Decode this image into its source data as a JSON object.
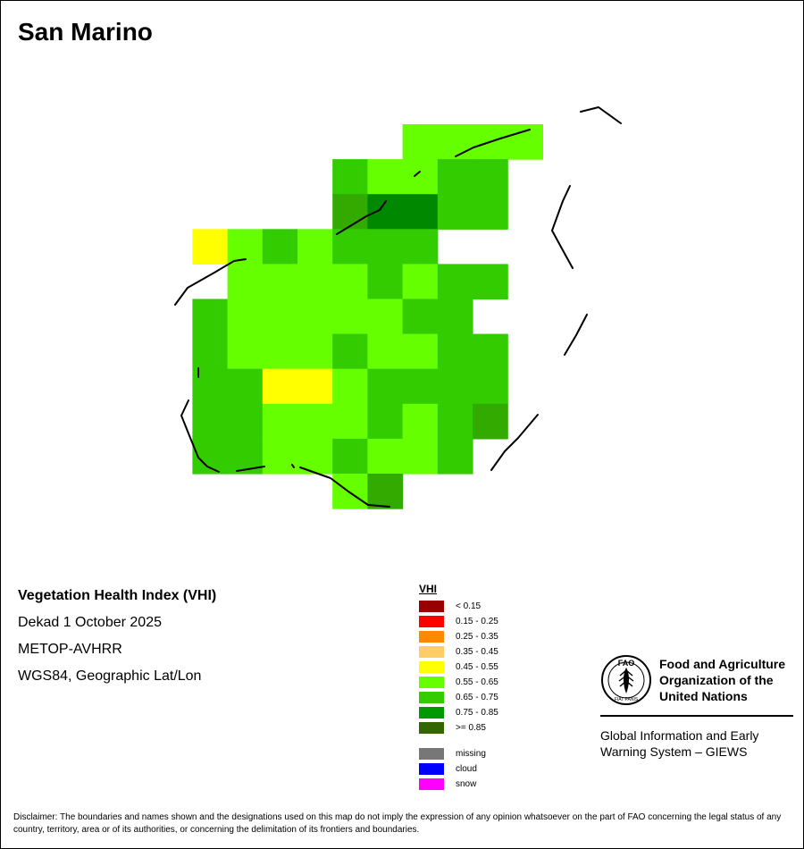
{
  "title": "San Marino",
  "map": {
    "grid": [
      "........GGGG.....",
      "......KLLKK......",
      "......ZMMAK......",
      "..YEKEKKK........",
      "...EEEEAEAA......",
      "..AEEEEEAA.......",
      "..AEEEAEEAA......",
      "..AAYYEAAAA......",
      "..AAEEEAEAZ......",
      "..AAEEAEEA.......",
      "......EZ........."
    ],
    "cell_colors": {
      "G": "#66ff00",
      "L": "#66ff00",
      "K": "#33cc00",
      "Z": "#33aa00",
      "M": "#008800",
      "A": "#33cc00",
      "E": "#66ff00",
      "Y": "#ffff00"
    },
    "boundary_color": "#000000"
  },
  "info": {
    "line1": "Vegetation Health Index (VHI)",
    "line2": "Dekad 1 October 2025",
    "line3": "METOP-AVHRR",
    "line4": "WGS84, Geographic Lat/Lon"
  },
  "legend": {
    "title": "VHI",
    "classes": [
      {
        "label": "< 0.15",
        "color": "#990000"
      },
      {
        "label": "0.15 - 0.25",
        "color": "#ff0000"
      },
      {
        "label": "0.25 - 0.35",
        "color": "#ff8800"
      },
      {
        "label": "0.35 - 0.45",
        "color": "#ffcc66"
      },
      {
        "label": "0.45 - 0.55",
        "color": "#ffff00"
      },
      {
        "label": "0.55 - 0.65",
        "color": "#66ff00"
      },
      {
        "label": "0.65 - 0.75",
        "color": "#33cc00"
      },
      {
        "label": "0.75 - 0.85",
        "color": "#009900"
      },
      {
        "label": ">= 0.85",
        "color": "#336600"
      }
    ],
    "extra": [
      {
        "label": "missing",
        "color": "#777777"
      },
      {
        "label": "cloud",
        "color": "#0000ff"
      },
      {
        "label": "snow",
        "color": "#ff00ff"
      }
    ]
  },
  "fao": {
    "logo_text": "FAO",
    "logo_motto": "FIAT PANIS",
    "org_line1": "Food and Agriculture",
    "org_line2": "Organization of the",
    "org_line3": "United Nations",
    "giews_line1": "Global Information and Early",
    "giews_line2": "Warning System – GIEWS"
  },
  "disclaimer": "Disclaimer: The boundaries and names shown and the designations used on this map do not imply the expression of any opinion whatsoever on the part of FAO concerning the legal status of any country, territory, area or of its authorities, or concerning the delimitation of its frontiers and boundaries."
}
